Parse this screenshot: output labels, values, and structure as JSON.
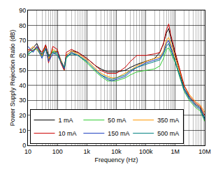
{
  "chart_data": {
    "type": "line",
    "x_label": "Frequency (Hz)",
    "y_label": "Power Supply Rejection Ratio (dB)",
    "log": "x",
    "grid": true,
    "legend": "lower left",
    "xlim": [
      10,
      10000000
    ],
    "ylim": [
      0,
      90
    ],
    "xticks": [
      10,
      100,
      {
        "value": 1000,
        "label": "1k"
      },
      {
        "value": 10000,
        "label": "10k"
      },
      {
        "value": 100000,
        "label": "100k"
      },
      {
        "value": 1000000,
        "label": "1M"
      },
      {
        "value": 10000000,
        "label": "10M"
      }
    ],
    "yticks": [
      0,
      10,
      20,
      30,
      40,
      50,
      60,
      70,
      80,
      90
    ],
    "x": [
      10,
      15,
      20,
      30,
      40,
      50,
      70,
      100,
      130,
      170,
      200,
      300,
      500,
      1000,
      2000,
      3000,
      5000,
      7000,
      10000,
      20000,
      30000,
      50000,
      100000,
      200000,
      300000,
      400000,
      500000,
      600000,
      700000,
      1000000,
      2000000,
      3000000,
      5000000,
      7000000,
      10000000
    ],
    "series": [
      {
        "name": "1 mA",
        "color": "#000000",
        "values": [
          62,
          65,
          68,
          60,
          67,
          60,
          62,
          63,
          57,
          52,
          60,
          63,
          62,
          58,
          53,
          51,
          49,
          49,
          49,
          50,
          52,
          54,
          56,
          58,
          62,
          68,
          75,
          78,
          72,
          60,
          38,
          32,
          27,
          25,
          18
        ]
      },
      {
        "name": "50 mA",
        "color": "#33cc33",
        "values": [
          60,
          64,
          64,
          59,
          65,
          57,
          63,
          61,
          56,
          50,
          58,
          62,
          60,
          55,
          49,
          46,
          43,
          43,
          43,
          45,
          47,
          49,
          50,
          51,
          53,
          58,
          64,
          65,
          62,
          55,
          36,
          30,
          25,
          23,
          16
        ]
      },
      {
        "name": "350 mA",
        "color": "#ff9900",
        "values": [
          63,
          66,
          64,
          60,
          66,
          58,
          64,
          62,
          57,
          51,
          60,
          63,
          61,
          57,
          51,
          48,
          46,
          45,
          45,
          48,
          50,
          53,
          56,
          58,
          59,
          63,
          70,
          72,
          68,
          58,
          40,
          34,
          29,
          27,
          22
        ]
      },
      {
        "name": "10 mA",
        "color": "#cc0000",
        "values": [
          64,
          63,
          66,
          62,
          67,
          55,
          66,
          64,
          55,
          50,
          62,
          64,
          62,
          58,
          53,
          50,
          48,
          48,
          48,
          52,
          56,
          60,
          60,
          61,
          62,
          68,
          77,
          81,
          74,
          62,
          40,
          33,
          28,
          26,
          20
        ]
      },
      {
        "name": "150 mA",
        "color": "#1f3fbf",
        "values": [
          66,
          62,
          66,
          58,
          65,
          56,
          61,
          62,
          56,
          51,
          59,
          62,
          60,
          56,
          50,
          47,
          44,
          43,
          44,
          46,
          49,
          52,
          55,
          57,
          58,
          62,
          68,
          70,
          66,
          56,
          37,
          31,
          26,
          24,
          17
        ]
      },
      {
        "name": "500 mA",
        "color": "#008080",
        "values": [
          61,
          63,
          65,
          61,
          64,
          59,
          62,
          60,
          56,
          52,
          59,
          61,
          60,
          56,
          50,
          47,
          45,
          44,
          45,
          47,
          50,
          52,
          54,
          56,
          57,
          61,
          66,
          68,
          64,
          56,
          38,
          32,
          27,
          25,
          18
        ]
      }
    ]
  }
}
